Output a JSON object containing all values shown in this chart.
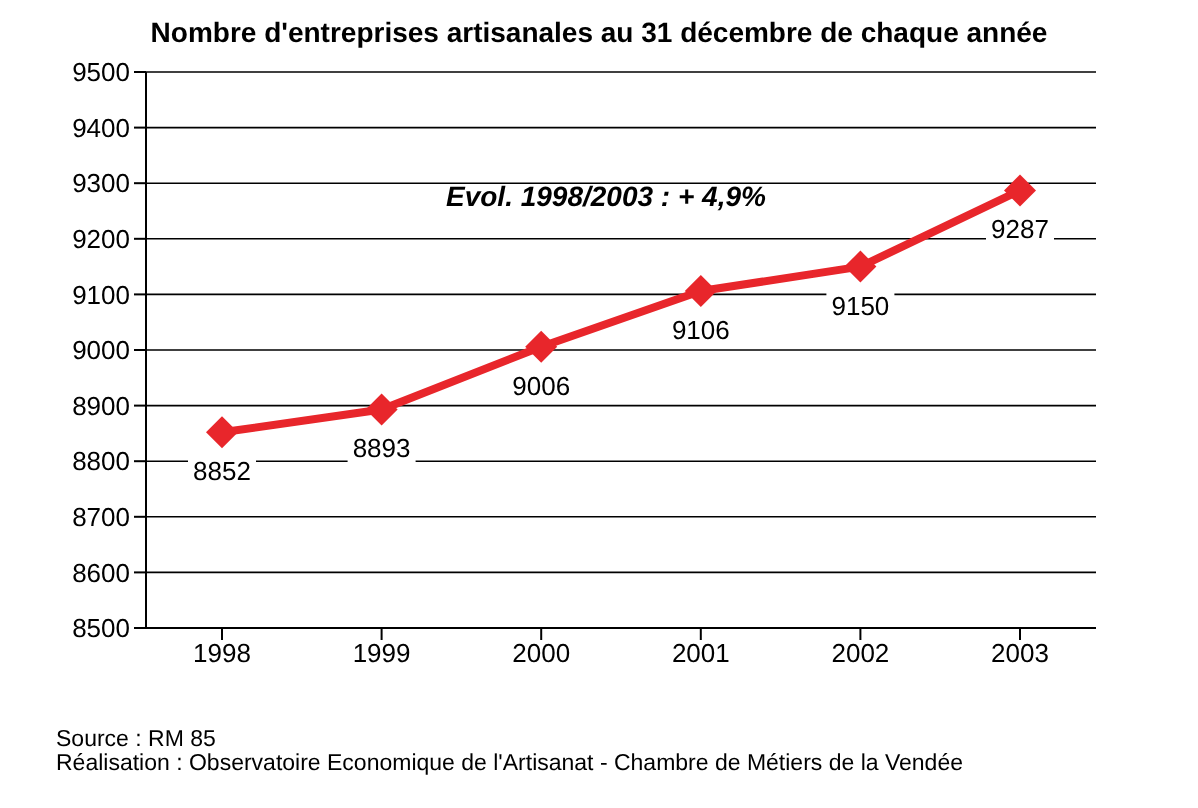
{
  "chart_data": {
    "type": "line",
    "title": "Nombre d'entreprises artisanales au 31 décembre de chaque année",
    "categories": [
      "1998",
      "1999",
      "2000",
      "2001",
      "2002",
      "2003"
    ],
    "series": [
      {
        "color": "#e8262b",
        "values": [
          8852,
          8893,
          9006,
          9106,
          9150,
          9287
        ]
      }
    ],
    "ylim": [
      8500,
      9500
    ],
    "yticks": [
      8500,
      8600,
      8700,
      8800,
      8900,
      9000,
      9100,
      9200,
      9300,
      9400,
      9500
    ],
    "grid": "y",
    "legend": false,
    "marker": "diamond",
    "line_style": "solid",
    "data_labels": true,
    "annotations": [
      "Evol. 1998/2003 : + 4,9%",
      "Source : RM 85",
      "Réalisation : Observatoire Economique de l'Artisanat - Chambre de Métiers de la Vendée"
    ]
  }
}
